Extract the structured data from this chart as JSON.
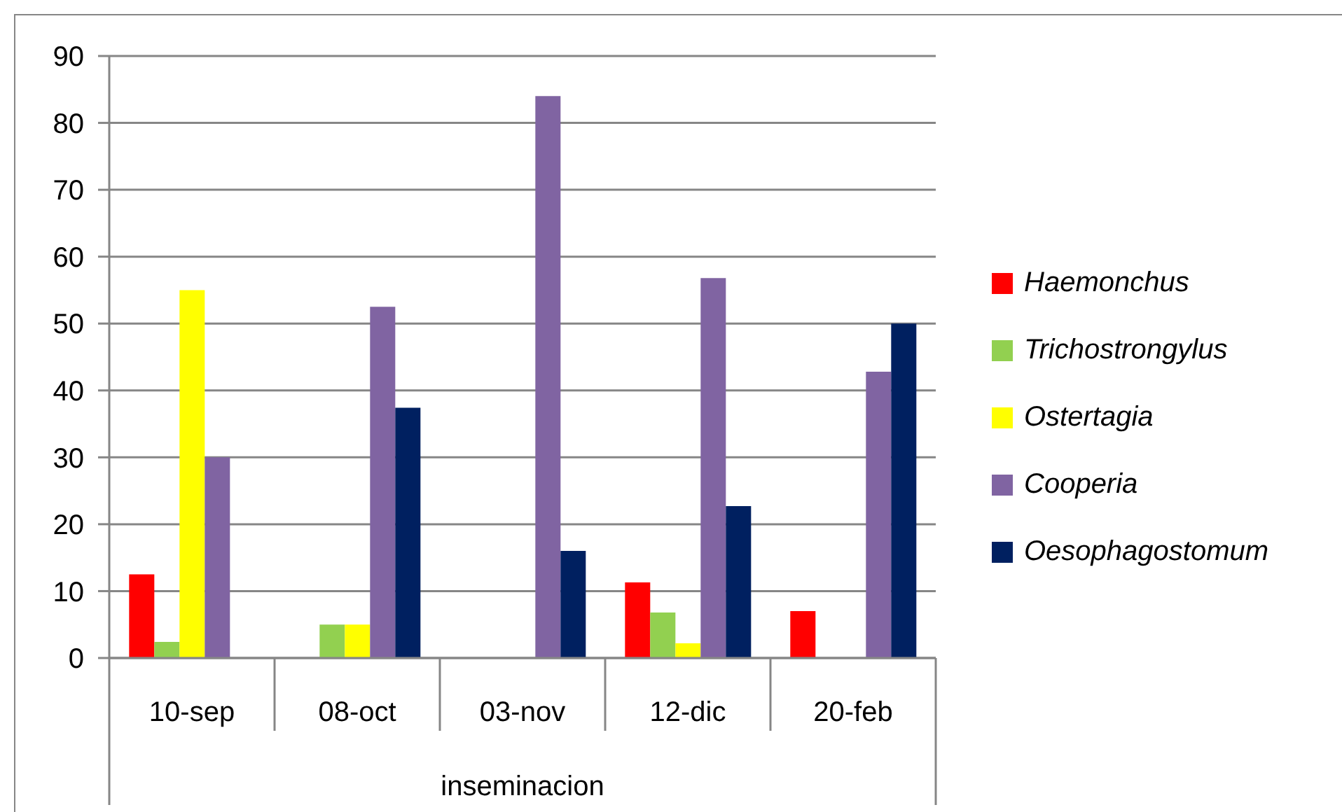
{
  "chart_data": {
    "type": "bar",
    "xlabel": "inseminacion",
    "categories": [
      "10-sep",
      "08-oct",
      "03-nov",
      "12-dic",
      "20-feb"
    ],
    "series": [
      {
        "name": "Haemonchus",
        "color": "#ff0000",
        "values": [
          12.5,
          null,
          null,
          11.3,
          7
        ]
      },
      {
        "name": "Trichostrongylus",
        "color": "#92d050",
        "values": [
          2.4,
          5,
          null,
          6.8,
          null
        ]
      },
      {
        "name": "Ostertagia",
        "color": "#ffff00",
        "values": [
          55,
          5,
          null,
          2.2,
          null
        ]
      },
      {
        "name": "Cooperia",
        "color": "#8064a2",
        "values": [
          30,
          52.5,
          84,
          56.8,
          42.8
        ]
      },
      {
        "name": "Oesophagostomum",
        "color": "#002060",
        "values": [
          null,
          37.4,
          16,
          22.7,
          50
        ]
      }
    ],
    "ylim": [
      0,
      90
    ],
    "yticks": [
      0,
      10,
      20,
      30,
      40,
      50,
      60,
      70,
      80,
      90
    ],
    "grid": "y",
    "legend": "right"
  }
}
